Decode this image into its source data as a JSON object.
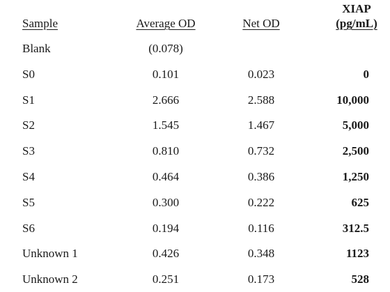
{
  "table": {
    "headers": {
      "sample": "Sample",
      "average_od": "Average OD",
      "net_od": "Net OD",
      "xiap": "XIAP",
      "xiap_unit": "(pg/mL)"
    },
    "rows": [
      {
        "sample": "Blank",
        "average_od": "(0.078)",
        "net_od": "",
        "xiap": ""
      },
      {
        "sample": "S0",
        "average_od": "0.101",
        "net_od": "0.023",
        "xiap": "0"
      },
      {
        "sample": "S1",
        "average_od": "2.666",
        "net_od": "2.588",
        "xiap": "10,000"
      },
      {
        "sample": "S2",
        "average_od": "1.545",
        "net_od": "1.467",
        "xiap": "5,000"
      },
      {
        "sample": "S3",
        "average_od": "0.810",
        "net_od": "0.732",
        "xiap": "2,500"
      },
      {
        "sample": "S4",
        "average_od": "0.464",
        "net_od": "0.386",
        "xiap": "1,250"
      },
      {
        "sample": "S5",
        "average_od": "0.300",
        "net_od": "0.222",
        "xiap": "625"
      },
      {
        "sample": "S6",
        "average_od": "0.194",
        "net_od": "0.116",
        "xiap": "312.5"
      },
      {
        "sample": "Unknown 1",
        "average_od": "0.426",
        "net_od": "0.348",
        "xiap": "1123"
      },
      {
        "sample": "Unknown 2",
        "average_od": "0.251",
        "net_od": "0.173",
        "xiap": "528"
      }
    ]
  }
}
